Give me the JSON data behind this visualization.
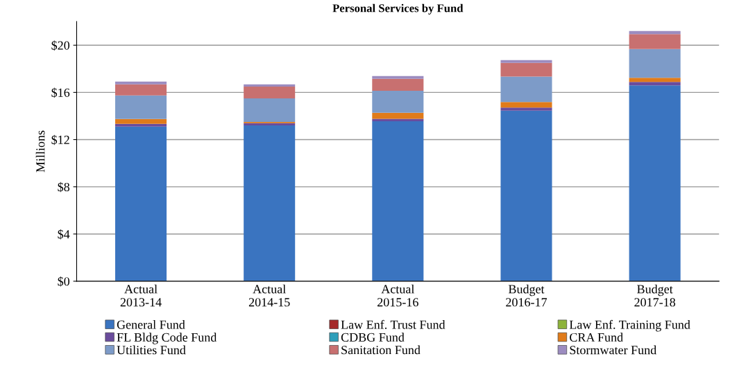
{
  "chart_data": {
    "type": "bar",
    "stacked": true,
    "title": "Personal Services by Fund",
    "ylabel": "Millions",
    "categories": [
      "Actual\n2013-14",
      "Actual\n2014-15",
      "Actual\n2015-16",
      "Budget\n2016-17",
      "Budget\n2017-18"
    ],
    "series": [
      {
        "name": "General Fund",
        "color": "#3a74c0",
        "values": [
          13.1,
          13.2,
          13.55,
          14.45,
          16.6
        ]
      },
      {
        "name": "Law Enf. Trust Fund",
        "color": "#a52a2a",
        "values": [
          0,
          0,
          0,
          0,
          0
        ]
      },
      {
        "name": "Law Enf. Training Fund",
        "color": "#8db33a",
        "values": [
          0,
          0,
          0,
          0,
          0
        ]
      },
      {
        "name": "FL Bldg Code Fund",
        "color": "#6a4c9c",
        "values": [
          0.23,
          0.2,
          0.21,
          0.27,
          0.29
        ]
      },
      {
        "name": "CDBG Fund",
        "color": "#2f9fba",
        "values": [
          0,
          0,
          0,
          0,
          0
        ]
      },
      {
        "name": "CRA Fund",
        "color": "#e07b1a",
        "values": [
          0.41,
          0.1,
          0.51,
          0.47,
          0.35
        ]
      },
      {
        "name": "Utilities Fund",
        "color": "#7d9bc8",
        "values": [
          2.0,
          2.0,
          1.87,
          2.16,
          2.44
        ]
      },
      {
        "name": "Sanitation Fund",
        "color": "#c87070",
        "values": [
          0.94,
          0.99,
          1.01,
          1.15,
          1.26
        ]
      },
      {
        "name": "Stormwater Fund",
        "color": "#9c8cc0",
        "values": [
          0.23,
          0.19,
          0.23,
          0.23,
          0.27
        ]
      }
    ],
    "ylim": [
      0,
      22
    ],
    "yticks": [
      {
        "value": 0,
        "label": "$0"
      },
      {
        "value": 4,
        "label": "$4"
      },
      {
        "value": 8,
        "label": "$8"
      },
      {
        "value": 12,
        "label": "$12"
      },
      {
        "value": 16,
        "label": "$16"
      },
      {
        "value": 20,
        "label": "$20"
      }
    ],
    "grid": "y",
    "legend": "bottom"
  }
}
